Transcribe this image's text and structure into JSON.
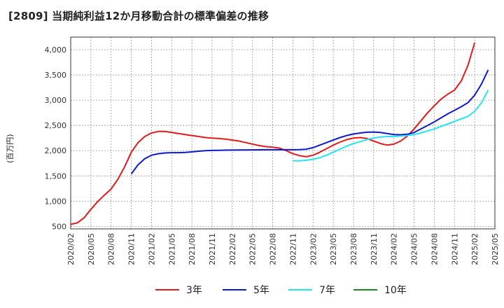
{
  "chart_data": {
    "type": "line",
    "title": "[2809]  当期純利益12か月移動合計の標準偏差の推移",
    "ylabel": "(百万円)",
    "xlabel": "",
    "ylim": [
      450,
      4250
    ],
    "yticks": [
      500,
      1000,
      1500,
      2000,
      2500,
      3000,
      3500,
      4000
    ],
    "ytick_labels": [
      "500",
      "1,000",
      "1,500",
      "2,000",
      "2,500",
      "3,000",
      "3,500",
      "4,000"
    ],
    "x_start": "2020/02",
    "x_end": "2025/05",
    "xtick_labels": [
      "2020/02",
      "2020/05",
      "2020/08",
      "2020/11",
      "2021/02",
      "2021/05",
      "2021/08",
      "2021/11",
      "2022/02",
      "2022/05",
      "2022/08",
      "2022/11",
      "2023/02",
      "2023/05",
      "2023/08",
      "2023/11",
      "2024/02",
      "2024/05",
      "2024/08",
      "2024/11",
      "2025/02",
      "2025/05"
    ],
    "grid": true,
    "legend_position": "bottom",
    "series": [
      {
        "name": "3年",
        "color": "#e31a1c",
        "start": "2020/02",
        "values": [
          540,
          570,
          670,
          840,
          990,
          1120,
          1240,
          1430,
          1680,
          1970,
          2160,
          2280,
          2350,
          2380,
          2380,
          2360,
          2340,
          2320,
          2300,
          2280,
          2260,
          2250,
          2240,
          2230,
          2210,
          2190,
          2160,
          2130,
          2100,
          2080,
          2070,
          2050,
          2000,
          1940,
          1900,
          1880,
          1910,
          1970,
          2040,
          2110,
          2170,
          2220,
          2250,
          2260,
          2240,
          2190,
          2140,
          2110,
          2130,
          2190,
          2290,
          2430,
          2590,
          2750,
          2890,
          3020,
          3120,
          3200,
          3380,
          3690,
          4140
        ]
      },
      {
        "name": "5年",
        "color": "#0c1acc",
        "start": "2020/11",
        "values": [
          1540,
          1720,
          1840,
          1910,
          1940,
          1955,
          1960,
          1960,
          1965,
          1975,
          1990,
          2000,
          2005,
          2008,
          2010,
          2012,
          2014,
          2015,
          2016,
          2017,
          2018,
          2018,
          2018,
          2018,
          2018,
          2020,
          2030,
          2060,
          2110,
          2160,
          2210,
          2260,
          2300,
          2330,
          2350,
          2365,
          2370,
          2360,
          2340,
          2320,
          2315,
          2325,
          2360,
          2430,
          2500,
          2570,
          2650,
          2730,
          2800,
          2870,
          2950,
          3100,
          3320,
          3600
        ]
      },
      {
        "name": "7年",
        "color": "#22e5ef",
        "start": "2022/11",
        "values": [
          1800,
          1800,
          1810,
          1830,
          1860,
          1910,
          1970,
          2030,
          2090,
          2140,
          2180,
          2220,
          2250,
          2270,
          2280,
          2280,
          2290,
          2300,
          2320,
          2350,
          2390,
          2430,
          2480,
          2530,
          2580,
          2630,
          2680,
          2780,
          2950,
          3200
        ]
      },
      {
        "name": "10年",
        "color": "#1a8a1a",
        "start": "2025/02",
        "values": []
      }
    ]
  }
}
